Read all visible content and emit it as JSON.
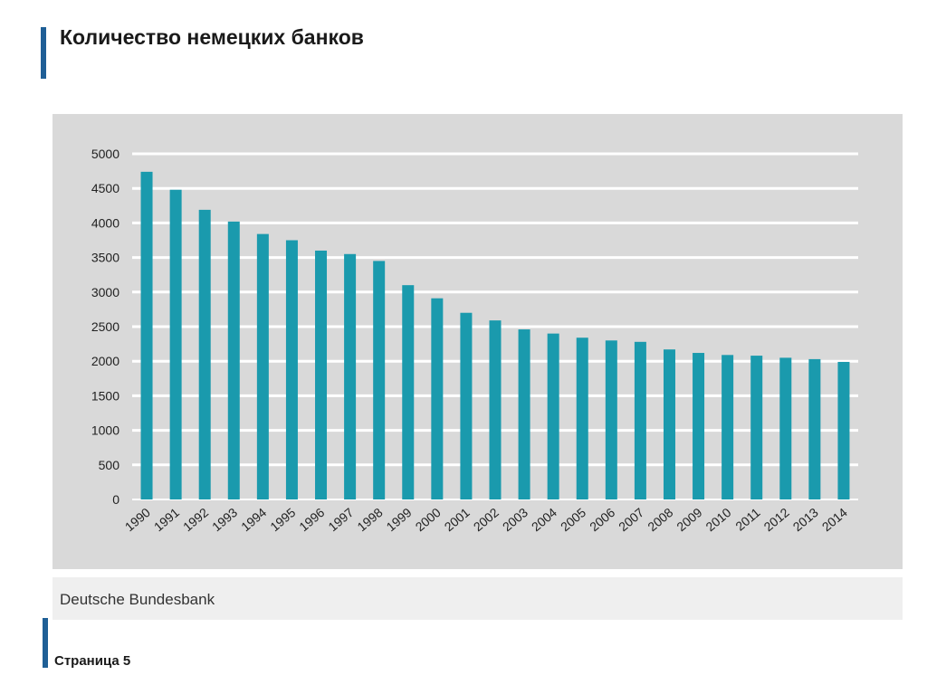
{
  "slide": {
    "title": "Количество немецких банков",
    "source": "Deutsche Bundesbank",
    "page_label": "Страница 5"
  },
  "colors": {
    "accent": "#1f5f96",
    "bar": "#1a9aad",
    "panel": "#d9d9d9",
    "grid": "#ffffff"
  },
  "chart_data": {
    "type": "bar",
    "title": "",
    "xlabel": "",
    "ylabel": "",
    "ylim": [
      0,
      5000
    ],
    "yticks": [
      0,
      500,
      1000,
      1500,
      2000,
      2500,
      3000,
      3500,
      4000,
      4500,
      5000
    ],
    "grid": true,
    "legend": "none",
    "categories": [
      "1990",
      "1991",
      "1992",
      "1993",
      "1994",
      "1995",
      "1996",
      "1997",
      "1998",
      "1999",
      "2000",
      "2001",
      "2002",
      "2003",
      "2004",
      "2005",
      "2006",
      "2007",
      "2008",
      "2009",
      "2010",
      "2011",
      "2012",
      "2013",
      "2014"
    ],
    "values": [
      4740,
      4480,
      4190,
      4020,
      3840,
      3750,
      3600,
      3550,
      3450,
      3100,
      2910,
      2700,
      2590,
      2460,
      2400,
      2340,
      2300,
      2280,
      2170,
      2120,
      2090,
      2080,
      2050,
      2030,
      1990
    ]
  }
}
